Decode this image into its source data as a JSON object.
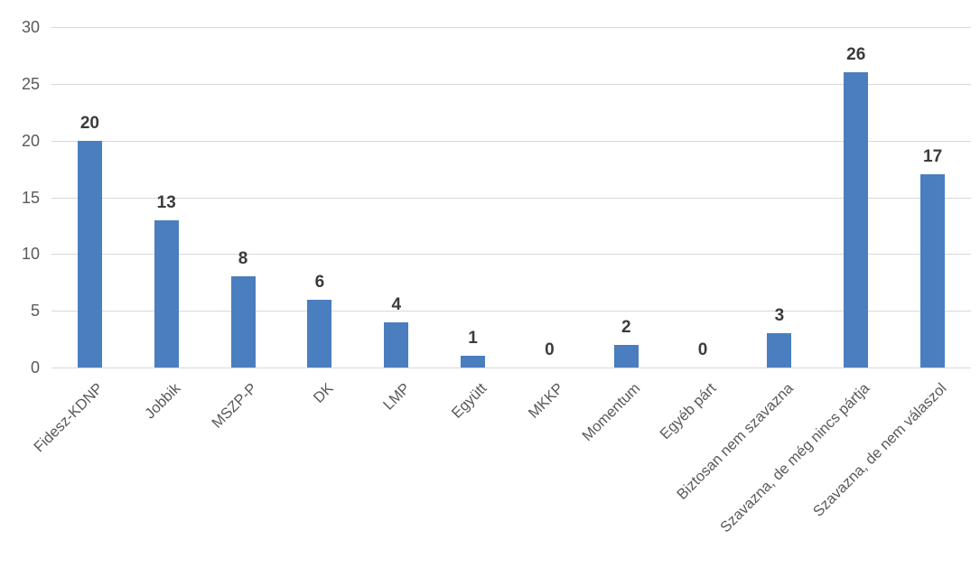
{
  "chart_data": {
    "type": "bar",
    "title": "",
    "xlabel": "",
    "ylabel": "",
    "categories": [
      "Fidesz-KDNP",
      "Jobbik",
      "MSZP-P",
      "DK",
      "LMP",
      "Együtt",
      "MKKP",
      "Momentum",
      "Egyéb párt",
      "Biztosan nem szavazna",
      "Szavazna, de még nincs pártja",
      "Szavazna, de nem válaszol"
    ],
    "values": [
      20,
      13,
      8,
      6,
      4,
      1,
      0,
      2,
      0,
      3,
      26,
      17
    ],
    "ylim": [
      0,
      30
    ],
    "yticks": [
      0,
      5,
      10,
      15,
      20,
      25,
      30
    ],
    "grid": "horizontal",
    "legend_position": "none",
    "data_labels": "outside-end",
    "x_label_rotation_deg": 45,
    "colors": {
      "bar_fill": "#4a7ebe",
      "gridline": "#d9d9d9",
      "axis_text": "#595959",
      "data_label_text": "#3b3b3b",
      "background": "#ffffff"
    }
  }
}
